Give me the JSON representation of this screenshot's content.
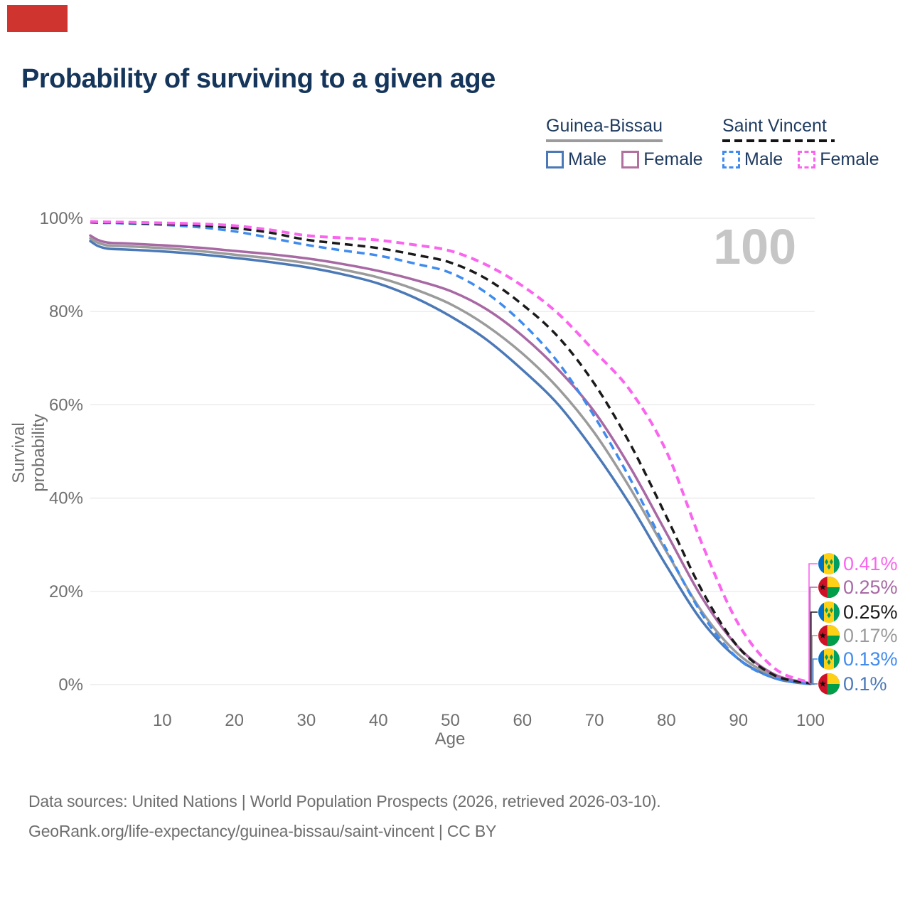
{
  "brand": {
    "logo_color": "#cf352e"
  },
  "title": "Probability of surviving to a given age",
  "age_counter": "100",
  "legend": {
    "groups": [
      {
        "name": "Guinea-Bissau",
        "line_style": "solid",
        "underline_color": "#9b9b9b",
        "items": [
          {
            "label": "Male",
            "color": "#4b79b7",
            "dashed": false
          },
          {
            "label": "Female",
            "color": "#b1719f",
            "dashed": false
          }
        ]
      },
      {
        "name": "Saint Vincent",
        "line_style": "dashed",
        "underline_color": "#141414",
        "items": [
          {
            "label": "Male",
            "color": "#3f8bee",
            "dashed": true
          },
          {
            "label": "Female",
            "color": "#fa64ef",
            "dashed": true
          }
        ]
      }
    ]
  },
  "chart_data": {
    "type": "line",
    "title": "Probability of surviving to a given age",
    "xlabel": "Age",
    "ylabel": "Survival probability",
    "xlim": [
      0,
      100
    ],
    "ylim": [
      0,
      100
    ],
    "grid": true,
    "legend_position": "top-right",
    "x_ticks": [
      10,
      20,
      30,
      40,
      50,
      60,
      70,
      80,
      90,
      100
    ],
    "y_ticks": [
      {
        "label": "0%",
        "value": 0
      },
      {
        "label": "20%",
        "value": 20
      },
      {
        "label": "40%",
        "value": 40
      },
      {
        "label": "60%",
        "value": 60
      },
      {
        "label": "80%",
        "value": 80
      },
      {
        "label": "100%",
        "value": 100
      }
    ],
    "x": [
      0,
      1,
      2,
      3,
      5,
      10,
      15,
      20,
      25,
      30,
      35,
      40,
      45,
      50,
      55,
      60,
      65,
      70,
      75,
      80,
      85,
      90,
      95,
      100
    ],
    "series": [
      {
        "name": "Guinea-Bissau Male",
        "country": "Guinea-Bissau",
        "sex": "male",
        "color": "#4b79b7",
        "dashed": false,
        "end_label": "0.1%",
        "values": [
          95.1,
          94.1,
          93.6,
          93.4,
          93.3,
          92.9,
          92.3,
          91.5,
          90.6,
          89.5,
          88.0,
          86.0,
          83.0,
          79.0,
          74.0,
          67.5,
          60.0,
          50.0,
          38.5,
          25.5,
          13.5,
          5.5,
          1.4,
          0.1
        ]
      },
      {
        "name": "Guinea-Bissau All",
        "country": "Guinea-Bissau",
        "sex": "all",
        "color": "#9b9b9b",
        "dashed": false,
        "end_label": "0.17%",
        "values": [
          95.7,
          94.8,
          94.3,
          94.1,
          94.0,
          93.6,
          93.0,
          92.2,
          91.4,
          90.4,
          89.0,
          87.3,
          84.8,
          81.6,
          77.0,
          71.0,
          63.5,
          54.0,
          42.0,
          28.5,
          15.5,
          6.5,
          1.8,
          0.17
        ]
      },
      {
        "name": "Guinea-Bissau Female",
        "country": "Guinea-Bissau",
        "sex": "female",
        "color": "#a868a4",
        "dashed": false,
        "end_label": "0.25%",
        "values": [
          96.3,
          95.4,
          94.9,
          94.7,
          94.6,
          94.2,
          93.7,
          93.0,
          92.3,
          91.4,
          90.2,
          88.7,
          86.8,
          84.4,
          80.5,
          74.8,
          67.5,
          58.5,
          46.5,
          32.5,
          18.5,
          8.0,
          2.2,
          0.25
        ]
      },
      {
        "name": "Saint Vincent Male",
        "country": "Saint Vincent",
        "sex": "male",
        "color": "#3f8bee",
        "dashed": true,
        "end_label": "0.13%",
        "values": [
          99.1,
          99.05,
          99.0,
          99.0,
          98.9,
          98.6,
          98.1,
          97.2,
          95.8,
          94.3,
          93.1,
          92.0,
          90.3,
          88.3,
          84.0,
          77.5,
          69.0,
          57.5,
          44.0,
          29.0,
          15.0,
          5.5,
          1.4,
          0.13
        ]
      },
      {
        "name": "Saint Vincent All",
        "country": "Saint Vincent",
        "sex": "all",
        "color": "#1a1a1a",
        "dashed": true,
        "end_label": "0.25%",
        "values": [
          99.2,
          99.15,
          99.1,
          99.1,
          99.0,
          98.8,
          98.5,
          97.9,
          96.9,
          95.4,
          94.5,
          93.6,
          92.2,
          90.5,
          87.0,
          81.5,
          74.5,
          64.5,
          51.5,
          36.0,
          20.0,
          8.0,
          2.0,
          0.25
        ]
      },
      {
        "name": "Saint Vincent Female",
        "country": "Saint Vincent",
        "sex": "female",
        "color": "#fa64ef",
        "dashed": true,
        "end_label": "0.41%",
        "values": [
          99.3,
          99.25,
          99.2,
          99.2,
          99.15,
          99.0,
          98.8,
          98.4,
          97.5,
          96.3,
          95.8,
          95.3,
          94.3,
          93.0,
          90.0,
          85.5,
          79.5,
          71.5,
          63.0,
          50.0,
          30.0,
          13.0,
          3.5,
          0.41
        ]
      }
    ]
  },
  "value_labels": [
    {
      "flag": "saint-vincent",
      "text": "0.41%",
      "value": 0.41,
      "color": "#fa64ef"
    },
    {
      "flag": "guinea-bissau",
      "text": "0.25%",
      "value": 0.25,
      "color": "#a868a4"
    },
    {
      "flag": "saint-vincent",
      "text": "0.25%",
      "value": 0.25,
      "color": "#1a1a1a"
    },
    {
      "flag": "guinea-bissau",
      "text": "0.17%",
      "value": 0.17,
      "color": "#9b9b9b"
    },
    {
      "flag": "saint-vincent",
      "text": "0.13%",
      "value": 0.13,
      "color": "#3f8bee"
    },
    {
      "flag": "guinea-bissau",
      "text": "0.1%",
      "value": 0.1,
      "color": "#4b79b7"
    }
  ],
  "footer": {
    "line1": "Data sources: United Nations | World Population Prospects (2026, retrieved 2026-03-10).",
    "line2": "GeoRank.org/life-expectancy/guinea-bissau/saint-vincent | CC BY"
  }
}
